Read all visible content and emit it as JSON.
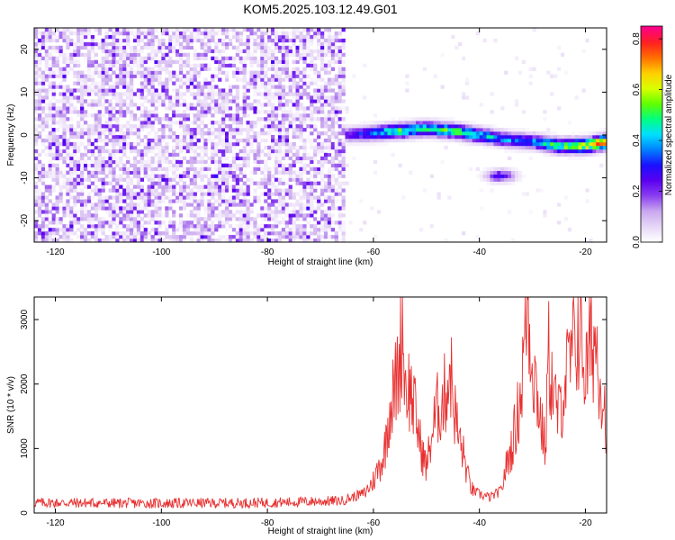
{
  "figure": {
    "title": "KOM5.2025.103.12.49.G01"
  },
  "chart_data": [
    {
      "type": "heatmap",
      "xlabel": "Height of straight line (km)",
      "ylabel": "Frequency (Hz)",
      "xlim": [
        -124,
        -16
      ],
      "ylim": [
        -25,
        25
      ],
      "x_ticks": [
        -120,
        -100,
        -80,
        -60,
        -40,
        -20
      ],
      "y_ticks": [
        -20,
        -10,
        0,
        10,
        20
      ],
      "colorbar": {
        "label": "Normalized spectral amplitude",
        "range": [
          0,
          0.85
        ],
        "ticks": [
          "0.0",
          "0.2",
          "0.4",
          "0.6",
          "0.8"
        ],
        "ticks_values": [
          0.0,
          0.2,
          0.4,
          0.6,
          0.8
        ],
        "colormap": [
          "#ffffff",
          "#e6d6f6",
          "#c8a6ee",
          "#8a3ef0",
          "#5a00f0",
          "#1a10ff",
          "#0080ff",
          "#00e0ff",
          "#00ff80",
          "#60ff00",
          "#d8ff00",
          "#ffd000",
          "#ff7000",
          "#ff2020",
          "#ff0088"
        ]
      },
      "noise_region_x": [
        -124,
        -65
      ],
      "noise_region_level": 0.2,
      "signal_band": {
        "x": [
          -66,
          -60,
          -55,
          -50,
          -45,
          -40,
          -35,
          -30,
          -25,
          -20,
          -16
        ],
        "freq": [
          0,
          0.5,
          1,
          1.5,
          1,
          0,
          -1,
          -1.5,
          -2.5,
          -2.5,
          -1.5
        ],
        "amplitude": [
          0.2,
          0.4,
          0.55,
          0.5,
          0.55,
          0.45,
          0.4,
          0.4,
          0.55,
          0.65,
          0.85
        ]
      },
      "secondary_blob": {
        "x": -36,
        "freq": -9.5,
        "amplitude": 0.3
      }
    },
    {
      "type": "line",
      "xlabel": "Height of straight line (km)",
      "ylabel": "SNR (10 * v/v)",
      "xlim": [
        -124,
        -16
      ],
      "ylim": [
        0,
        3350
      ],
      "x_ticks": [
        -120,
        -100,
        -80,
        -60,
        -40,
        -20
      ],
      "y_ticks": [
        0,
        1000,
        2000,
        3000
      ],
      "series": [
        {
          "color": "#e83030",
          "x": [
            -124,
            -100,
            -80,
            -66,
            -62,
            -60,
            -58,
            -57,
            -56,
            -55,
            -54.5,
            -54,
            -53,
            -52,
            -51,
            -50,
            -49,
            -48,
            -47,
            -46,
            -45.5,
            -45,
            -44,
            -43,
            -42,
            -41,
            -40,
            -38,
            -36,
            -35,
            -34,
            -33,
            -32,
            -31.5,
            -31,
            -30,
            -29,
            -28,
            -27.5,
            -27,
            -26,
            -25,
            -24,
            -23,
            -22,
            -21.5,
            -21,
            -20,
            -19,
            -18,
            -17,
            -16
          ],
          "y": [
            120,
            110,
            120,
            150,
            260,
            500,
            900,
            1600,
            1900,
            2400,
            2950,
            2000,
            1900,
            1500,
            1000,
            700,
            1200,
            1600,
            1700,
            2000,
            2300,
            1800,
            1200,
            900,
            500,
            300,
            250,
            200,
            300,
            700,
            1000,
            1400,
            2000,
            2700,
            3300,
            2400,
            1800,
            1200,
            1000,
            2500,
            1800,
            1500,
            2000,
            2300,
            2600,
            2800,
            2950,
            2100,
            2600,
            2700,
            2000,
            1400
          ]
        }
      ]
    }
  ]
}
